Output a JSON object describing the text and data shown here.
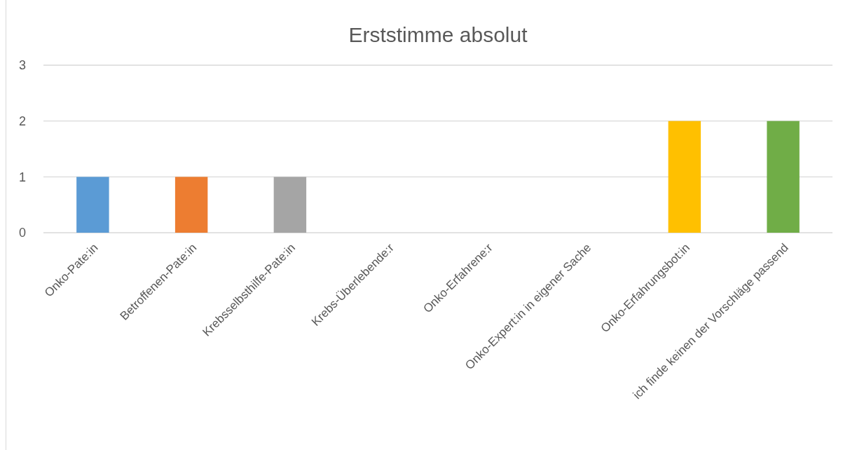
{
  "chart_data": {
    "type": "bar",
    "title": "Erststimme absolut",
    "categories": [
      "Onko-Pate:in",
      "Betroffenen-Pate:in",
      "Krebsselbsthilfe-Pate:in",
      "Krebs-Überlebende:r",
      "Onko-Erfahrene:r",
      "Onko-Expert:in in eigener Sache",
      "Onko-Erfahrungsbot:in",
      "ich finde keinen der Vorschläge passend"
    ],
    "values": [
      1,
      1,
      1,
      0,
      0,
      0,
      2,
      2
    ],
    "colors": [
      "#5b9bd5",
      "#ed7d31",
      "#a5a5a5",
      "#4472c4",
      "#264478",
      "#9e480e",
      "#ffc000",
      "#70ad47"
    ],
    "ylim": [
      0,
      3
    ],
    "yticks": [
      0,
      1,
      2,
      3
    ],
    "grid": "y"
  }
}
